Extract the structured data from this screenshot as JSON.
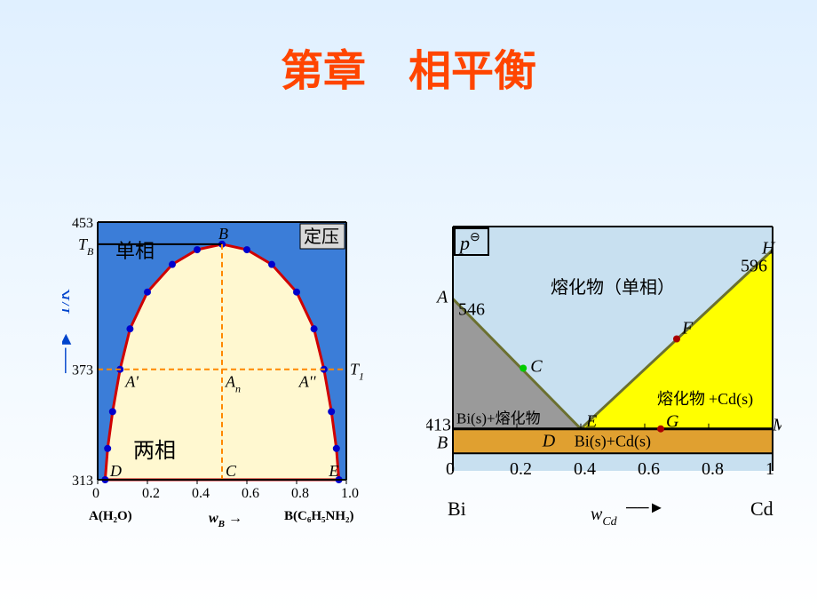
{
  "title": "第章　相平衡",
  "left_chart": {
    "type": "phase-diagram",
    "background_color": "#3b7dd8",
    "dome_fill": "#fff8d0",
    "dome_stroke": "#d00000",
    "dome_stroke_width": 3,
    "marker_color": "#0000cc",
    "marker_radius": 4,
    "grid_dash_color": "#ff8800",
    "axis_color": "#000000",
    "x_range": [
      0,
      1.0
    ],
    "y_range": [
      313,
      453
    ],
    "x_ticks": [
      "0",
      "0.2",
      "0.4",
      "0.6",
      "0.8",
      "1.0"
    ],
    "y_ticks": [
      "313",
      "373",
      "453"
    ],
    "y_tick_TB": "T",
    "y_axis_label": "T/K",
    "x_axis_label": "w",
    "x_axis_label_sub": "B",
    "x_axis_arrow": "→",
    "left_substance": "A(H₂O)",
    "right_substance": "B(C₆H₅NH₂)",
    "box_label": "定压",
    "region_single": "单相",
    "region_two": "两相",
    "point_labels": {
      "B": "B",
      "A_prime": "A'",
      "A_n": "A",
      "A_n_sub": "n",
      "A_double": "A''",
      "T1": "T",
      "T1_sub": "1",
      "D": "D",
      "C": "C",
      "E": "E",
      "TB_sub": "B"
    },
    "dome_points": [
      {
        "x": 0.03,
        "y": 313
      },
      {
        "x": 0.04,
        "y": 330
      },
      {
        "x": 0.06,
        "y": 350
      },
      {
        "x": 0.09,
        "y": 373
      },
      {
        "x": 0.13,
        "y": 395
      },
      {
        "x": 0.2,
        "y": 415
      },
      {
        "x": 0.3,
        "y": 430
      },
      {
        "x": 0.4,
        "y": 438
      },
      {
        "x": 0.5,
        "y": 441
      },
      {
        "x": 0.6,
        "y": 438
      },
      {
        "x": 0.7,
        "y": 430
      },
      {
        "x": 0.8,
        "y": 415
      },
      {
        "x": 0.87,
        "y": 395
      },
      {
        "x": 0.91,
        "y": 373
      },
      {
        "x": 0.94,
        "y": 350
      },
      {
        "x": 0.96,
        "y": 330
      },
      {
        "x": 0.97,
        "y": 313
      }
    ],
    "tie_line_y": 373,
    "tie_line_x1": 0.09,
    "tie_line_x2": 0.91,
    "apex_x": 0.5,
    "apex_y": 441,
    "TB_line_y": 441
  },
  "right_chart": {
    "type": "eutectic-phase-diagram",
    "background_color": "#c8e0f0",
    "region_colors": {
      "melt": "#c8e0f0",
      "left_triangle": "#9a9a9a",
      "right_region": "#ffff00",
      "bottom_strip": "#e0a030"
    },
    "line_color": "#6b7030",
    "line_width": 3,
    "axis_color": "#000000",
    "x_range": [
      0,
      1.0
    ],
    "y_range": [
      370,
      620
    ],
    "x_ticks": [
      "0",
      "0.2",
      "0.4",
      "0.6",
      "0.8",
      "1"
    ],
    "left_element": "Bi",
    "right_element": "Cd",
    "x_axis_label": "w",
    "x_axis_label_sub": "Cd",
    "p_theta": "p",
    "T_left": "546",
    "T_right": "596",
    "T_eutectic": "413",
    "region_melt": "熔化物（单相）",
    "region_left": "Bi(s)+熔化物",
    "region_right_a": "熔化物",
    "region_right_b": "+Cd(s)",
    "region_bottom": "Bi(s)+Cd(s)",
    "point_labels": {
      "A": "A",
      "H": "H",
      "C": "C",
      "F": "F",
      "E": "E",
      "G": "G",
      "M": "M",
      "B": "B",
      "D": "D"
    },
    "points": {
      "A": {
        "x": 0.0,
        "y": 546
      },
      "H": {
        "x": 1.0,
        "y": 596
      },
      "E": {
        "x": 0.4,
        "y": 413
      },
      "eutectic_line_y": 413,
      "bottom_y": 388,
      "C": {
        "x": 0.22,
        "y": 475
      },
      "F": {
        "x": 0.7,
        "y": 505
      },
      "G": {
        "x": 0.65,
        "y": 413
      }
    },
    "marker_fill_C": "#00cc00",
    "marker_fill_F": "#aa0000",
    "marker_fill_G": "#aa0000"
  }
}
